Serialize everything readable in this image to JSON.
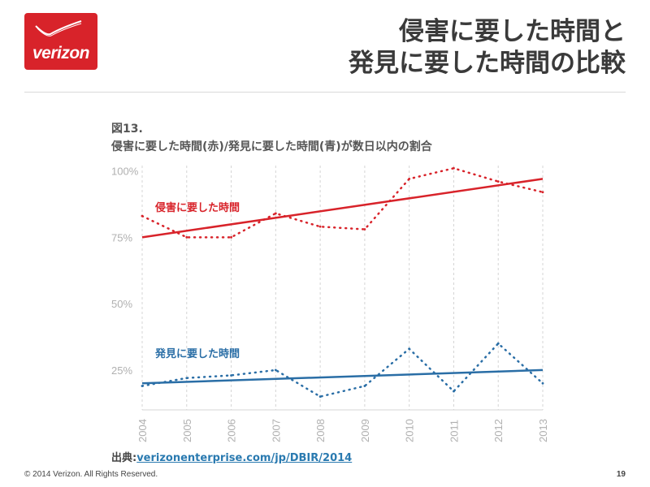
{
  "brand": {
    "logo_text": "verizon",
    "logo_color": "#d8232a"
  },
  "slide": {
    "title_line1": "侵害に要した時間と",
    "title_line2": "発見に要した時間の比較",
    "page_number": "19",
    "copyright": "© 2014 Verizon. All Rights Reserved."
  },
  "figure": {
    "number": "図13.",
    "caption": "侵害に要した時間(赤)/発見に要した時間(青)が数日以内の割合",
    "source_prefix": "出典:",
    "source_link": "verizonenterprise.com/jp/DBIR/2014"
  },
  "chart_data": {
    "type": "line",
    "x": [
      2004,
      2005,
      2006,
      2007,
      2008,
      2009,
      2010,
      2011,
      2012,
      2013
    ],
    "x_tick_labels": [
      "2004",
      "2005",
      "2006",
      "2007",
      "2008",
      "2009",
      "2010",
      "2011",
      "2012",
      "2013"
    ],
    "y_ticks": [
      25,
      50,
      75,
      100
    ],
    "y_tick_labels": [
      "25%",
      "50%",
      "75%",
      "100%"
    ],
    "ylim": [
      10,
      102
    ],
    "grid": "vertical dashed",
    "series": [
      {
        "name": "侵害に要した時間",
        "color": "#d8232a",
        "values": [
          83,
          75,
          75,
          84,
          79,
          78,
          97,
          101,
          96,
          92
        ],
        "trend": [
          75,
          97
        ]
      },
      {
        "name": "発見に要した時間",
        "color": "#2a6ea6",
        "values": [
          19,
          22,
          23,
          25,
          15,
          19,
          33,
          17,
          35,
          20
        ],
        "trend": [
          20,
          25
        ]
      }
    ]
  }
}
